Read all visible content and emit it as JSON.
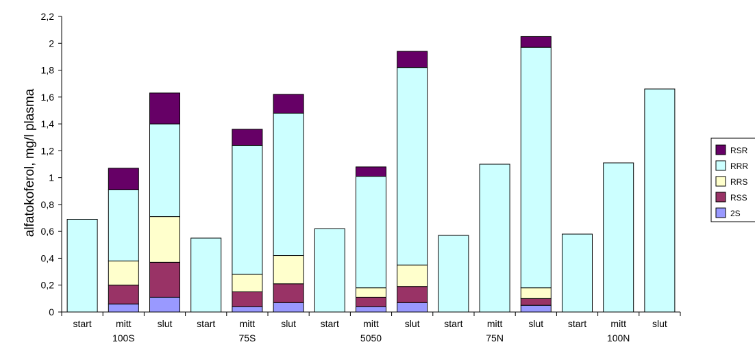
{
  "chart_data": {
    "type": "bar",
    "stacked": true,
    "ylabel": "alfatokoferol, mg/l plasma",
    "ylim": [
      0,
      2.2
    ],
    "yticks": [
      "0",
      "0,2",
      "0,4",
      "0,6",
      "0,8",
      "1",
      "1,2",
      "1,4",
      "1,6",
      "1,8",
      "2",
      "2,2"
    ],
    "categories": [
      "start",
      "mitt",
      "slut",
      "start",
      "mitt",
      "slut",
      "start",
      "mitt",
      "slut",
      "start",
      "mitt",
      "slut",
      "start",
      "mitt",
      "slut"
    ],
    "groups": [
      "100S",
      "75S",
      "5050",
      "75N",
      "100N"
    ],
    "series": [
      {
        "name": "2S",
        "color": "#9999ff",
        "values": [
          0,
          0.06,
          0.11,
          0,
          0.04,
          0.07,
          0,
          0.04,
          0.07,
          0,
          0,
          0.05,
          0,
          0,
          0
        ]
      },
      {
        "name": "RSS",
        "color": "#993366",
        "values": [
          0,
          0.14,
          0.26,
          0,
          0.11,
          0.14,
          0,
          0.07,
          0.12,
          0,
          0,
          0.05,
          0,
          0,
          0
        ]
      },
      {
        "name": "RRS",
        "color": "#ffffcc",
        "values": [
          0,
          0.18,
          0.34,
          0,
          0.13,
          0.21,
          0,
          0.07,
          0.16,
          0,
          0,
          0.08,
          0,
          0,
          0
        ]
      },
      {
        "name": "RRR",
        "color": "#ccffff",
        "values": [
          0.69,
          0.53,
          0.69,
          0.55,
          0.96,
          1.06,
          0.62,
          0.83,
          1.47,
          0.57,
          1.1,
          1.79,
          0.58,
          1.11,
          1.66
        ]
      },
      {
        "name": "RSR",
        "color": "#660066",
        "values": [
          0,
          0.16,
          0.23,
          0,
          0.12,
          0.14,
          0,
          0.07,
          0.12,
          0,
          0,
          0.08,
          0,
          0,
          0
        ]
      }
    ],
    "legend_position": "right",
    "grid": false
  }
}
